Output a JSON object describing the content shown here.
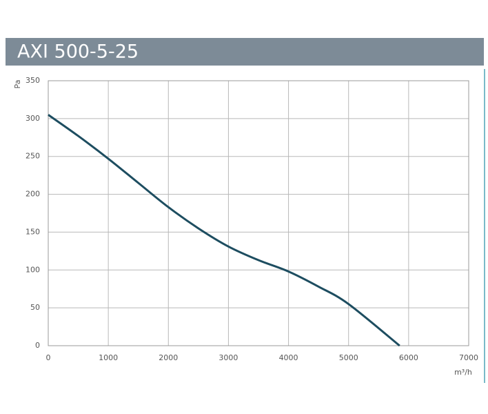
{
  "chart_data": {
    "type": "line",
    "title": "AXI 500-5-25",
    "x_label": "m³/h",
    "y_label": "Pa",
    "x": [
      0,
      500,
      1000,
      1500,
      2000,
      2500,
      3000,
      3500,
      4000,
      4500,
      5000,
      5850
    ],
    "values": [
      305,
      277,
      247,
      215,
      183,
      155,
      131,
      113,
      98,
      78,
      55,
      0
    ],
    "color": "#1d4d60",
    "xlim": [
      0,
      7000
    ],
    "xticks": [
      0,
      1000,
      2000,
      3000,
      4000,
      5000,
      6000,
      7000
    ],
    "ylim": [
      0,
      350
    ],
    "yticks": [
      0,
      50,
      100,
      150,
      200,
      250,
      300,
      350
    ],
    "grid": true
  }
}
